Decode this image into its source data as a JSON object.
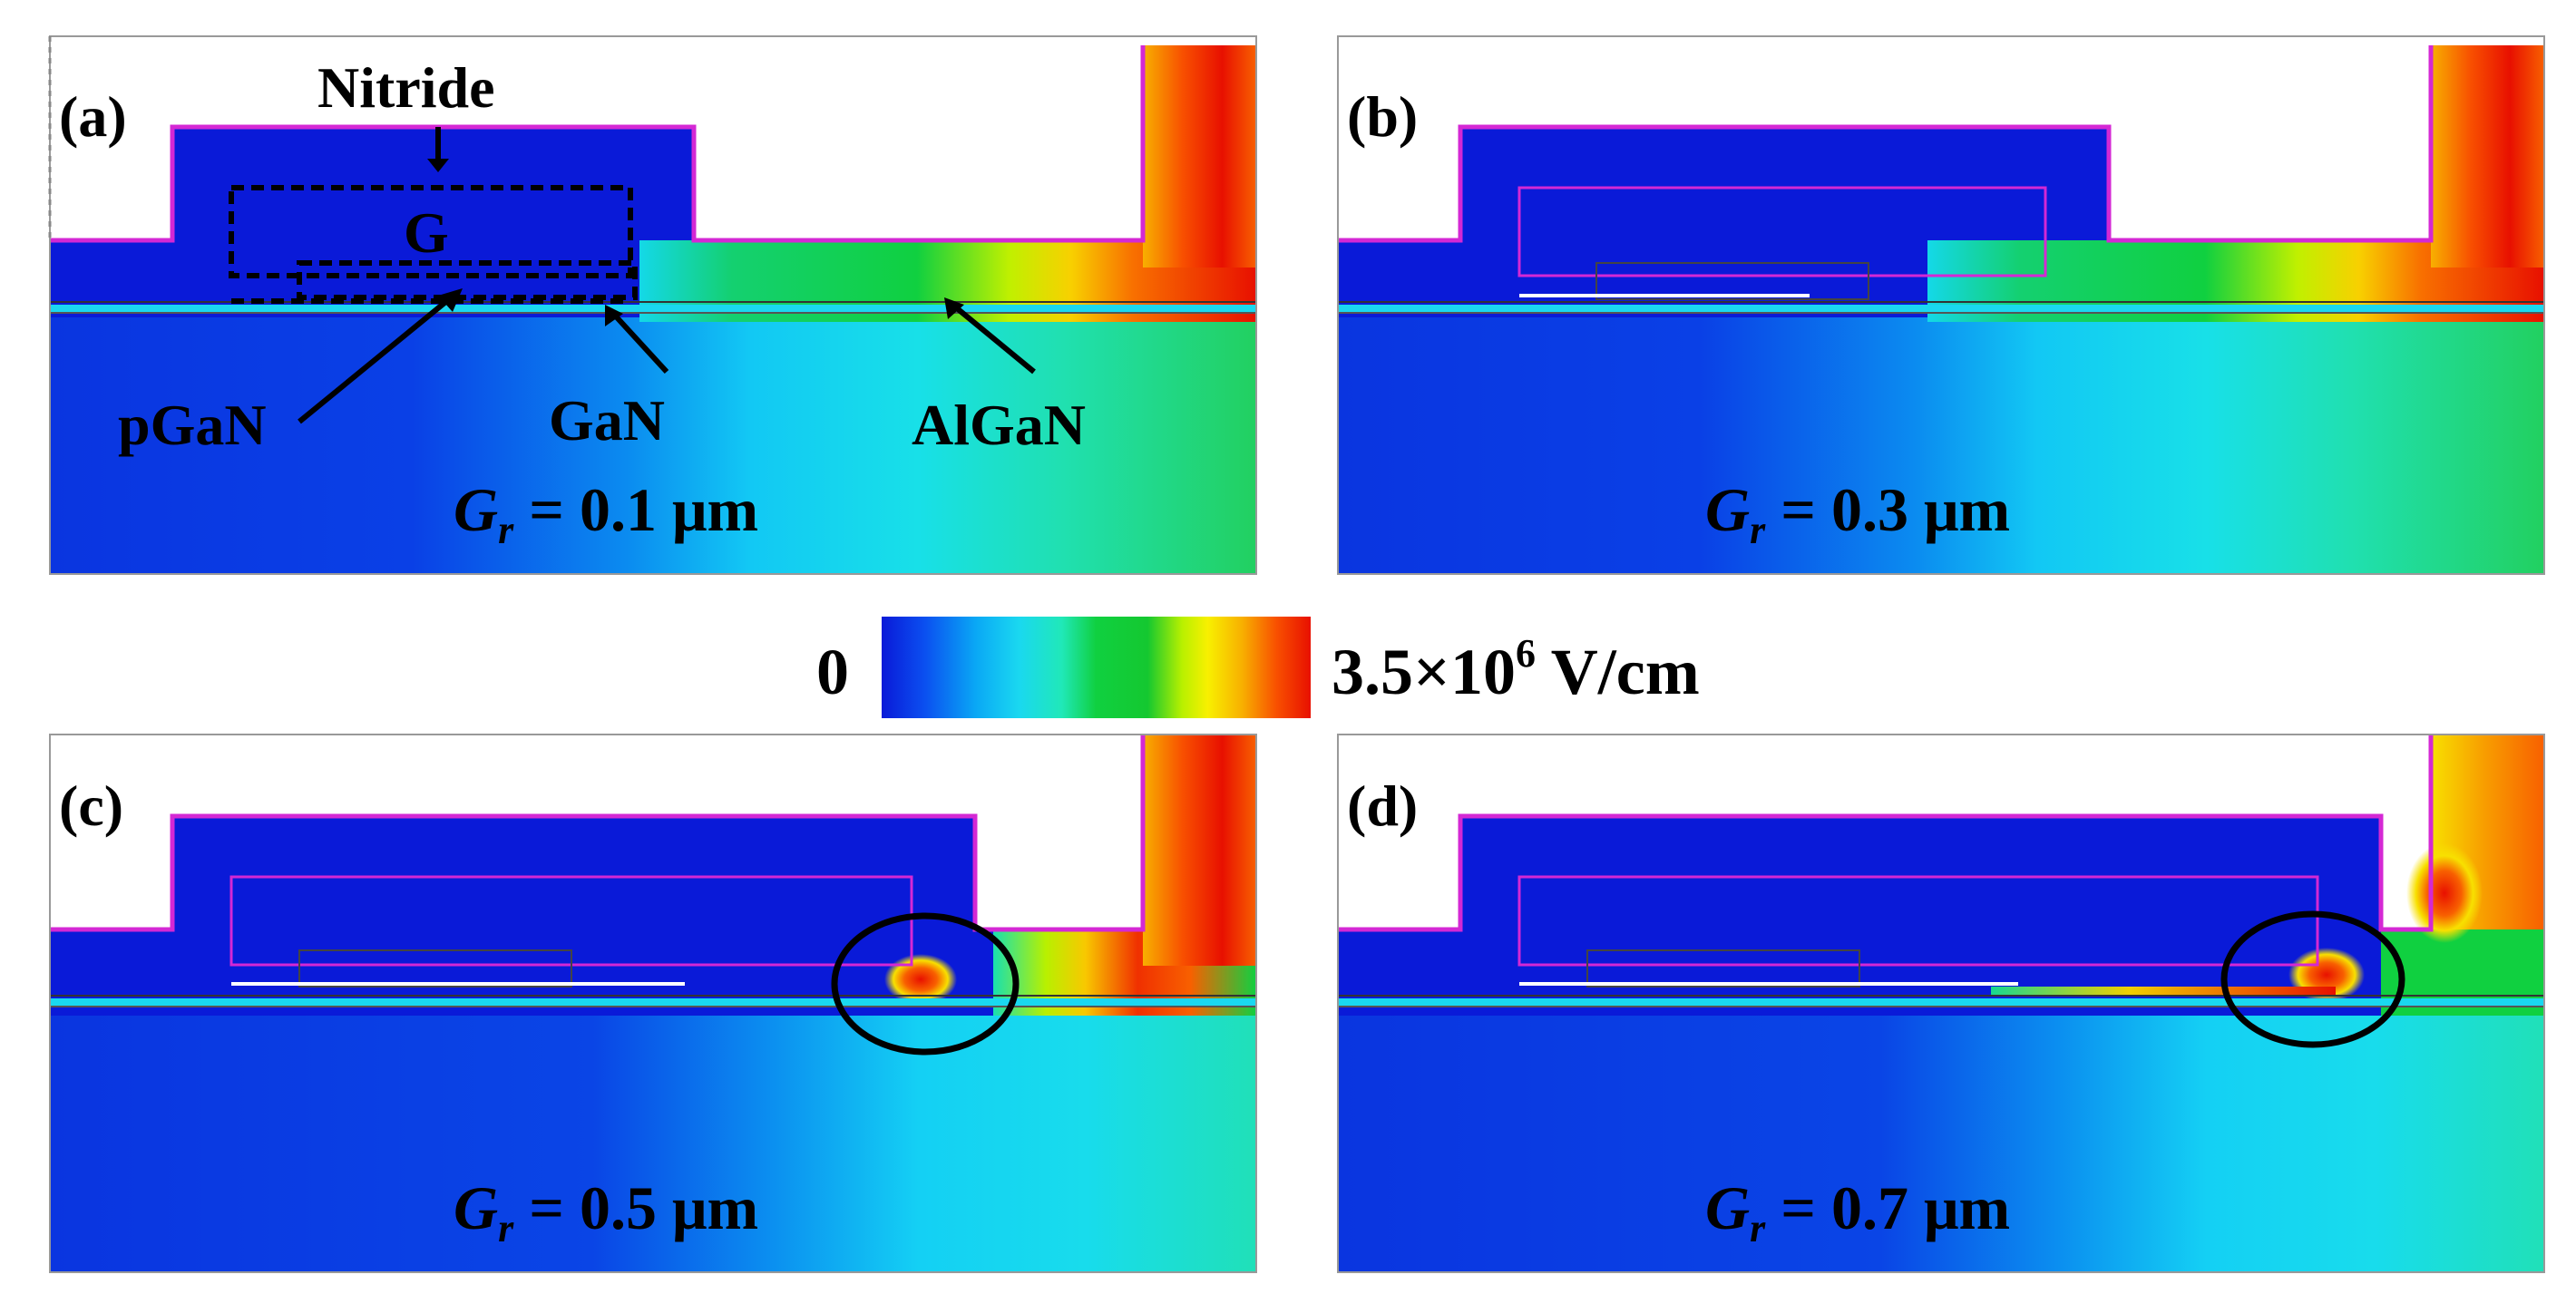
{
  "colorbar": {
    "min_label": "0",
    "max_label_base": "3.5×10",
    "max_label_exp": "6",
    "max_label_unit": " V/cm",
    "colors": [
      "#0a1ad8",
      "#0b4ff0",
      "#0aa8f5",
      "#1ad8f0",
      "#20e8b8",
      "#10d040",
      "#14c830",
      "#b8f000",
      "#f8f000",
      "#f8b000",
      "#f85000",
      "#e81000"
    ]
  },
  "panels": [
    {
      "id": "a",
      "label": "(a)",
      "gr_symbol": "G",
      "gr_sub": "r",
      "gr_value": " = 0.1 μm",
      "annotations": {
        "nitride": "Nitride",
        "gate": "G",
        "pgan": "pGaN",
        "gan": "GaN",
        "algan": "AlGaN"
      }
    },
    {
      "id": "b",
      "label": "(b)",
      "gr_symbol": "G",
      "gr_sub": "r",
      "gr_value": " = 0.3 μm"
    },
    {
      "id": "c",
      "label": "(c)",
      "gr_symbol": "G",
      "gr_sub": "r",
      "gr_value": " = 0.5 μm"
    },
    {
      "id": "d",
      "label": "(d)",
      "gr_symbol": "G",
      "gr_sub": "r",
      "gr_value": " = 0.7 μm"
    }
  ]
}
